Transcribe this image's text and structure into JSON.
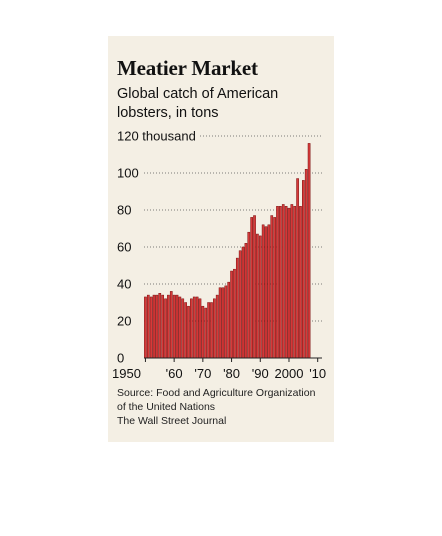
{
  "title": "Meatier Market",
  "subtitle": "Global catch of American lobsters, in tons",
  "source": {
    "line1": "Source: Food and Agriculture Organization",
    "line2": "of the United Nations",
    "line3": "The Wall Street Journal"
  },
  "colors": {
    "background": "#f4efe4",
    "bar": "#d63a3a",
    "bar_edge": "#7a1010",
    "gridline": "#555555"
  },
  "chart_data": {
    "type": "bar",
    "title": "Meatier Market",
    "subtitle": "Global catch of American lobsters, in tons",
    "xlabel": "",
    "ylabel": "",
    "ylim": [
      0,
      120
    ],
    "yticks": [
      0,
      20,
      40,
      60,
      80,
      100,
      120
    ],
    "ytick_labels": [
      "0",
      "20",
      "40",
      "60",
      "80",
      "100",
      "120 thousand"
    ],
    "xticks": [
      1950,
      1960,
      1970,
      1980,
      1990,
      2000,
      2010
    ],
    "xtick_labels": [
      "1950",
      "'60",
      "'70",
      "'80",
      "'90",
      "2000",
      "'10"
    ],
    "grid": "horizontal dotted",
    "categories": [
      1950,
      1951,
      1952,
      1953,
      1954,
      1955,
      1956,
      1957,
      1958,
      1959,
      1960,
      1961,
      1962,
      1963,
      1964,
      1965,
      1966,
      1967,
      1968,
      1969,
      1970,
      1971,
      1972,
      1973,
      1974,
      1975,
      1976,
      1977,
      1978,
      1979,
      1980,
      1981,
      1982,
      1983,
      1984,
      1985,
      1986,
      1987,
      1988,
      1989,
      1990,
      1991,
      1992,
      1993,
      1994,
      1995,
      1996,
      1997,
      1998,
      1999,
      2000,
      2001,
      2002,
      2003,
      2004,
      2005,
      2006,
      2007,
      2008,
      2009,
      2010
    ],
    "values": [
      33,
      34,
      33,
      34,
      34,
      35,
      34,
      32,
      34,
      36,
      34,
      34,
      33,
      32,
      30,
      28,
      32,
      33,
      33,
      32,
      28,
      27,
      30,
      30,
      32,
      34,
      38,
      38,
      39,
      41,
      47,
      48,
      54,
      58,
      60,
      62,
      68,
      76,
      77,
      67,
      66,
      72,
      71,
      72,
      77,
      76,
      82,
      82,
      83,
      82,
      81,
      83,
      82,
      97,
      82,
      96,
      102,
      116,
      0,
      0,
      0
    ]
  }
}
